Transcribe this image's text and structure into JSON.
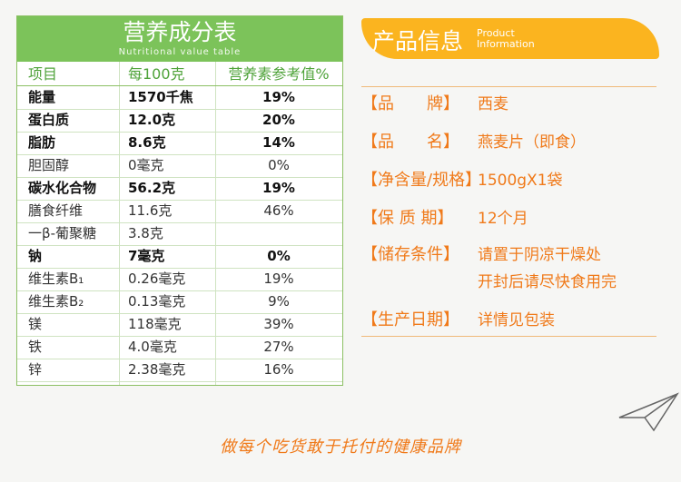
{
  "nutrition_table": {
    "title": "营养成分表",
    "subtitle": "Nutritional value table",
    "header": [
      "项目",
      "每100克",
      "营养素参考值%"
    ],
    "rows": [
      {
        "cells": [
          "能量",
          "1570千焦",
          "19%"
        ],
        "bold": true
      },
      {
        "cells": [
          "蛋白质",
          "12.0克",
          "20%"
        ],
        "bold": true
      },
      {
        "cells": [
          "脂肪",
          "8.6克",
          "14%"
        ],
        "bold": true
      },
      {
        "cells": [
          "胆固醇",
          "0毫克",
          "0%"
        ],
        "bold": false
      },
      {
        "cells": [
          "碳水化合物",
          "56.2克",
          "19%"
        ],
        "bold": true
      },
      {
        "cells": [
          "膳食纤维",
          "11.6克",
          "46%"
        ],
        "bold": false
      },
      {
        "cells": [
          "一β-葡聚糖",
          "3.8克"
        ],
        "bold": false
      },
      {
        "cells": [
          "钠",
          "7毫克",
          "0%"
        ],
        "bold": true
      },
      {
        "cells": [
          "维生素B₁",
          "0.26毫克",
          "19%"
        ],
        "bold": false
      },
      {
        "cells": [
          "维生素B₂",
          "0.13毫克",
          "9%"
        ],
        "bold": false
      },
      {
        "cells": [
          "镁",
          "118毫克",
          "39%"
        ],
        "bold": false
      },
      {
        "cells": [
          "铁",
          "4.0毫克",
          "27%"
        ],
        "bold": false
      },
      {
        "cells": [
          "锌",
          "2.38毫克",
          "16%"
        ],
        "bold": false
      }
    ]
  },
  "product_info": {
    "title": "产品信息",
    "subtitle": [
      "Product",
      "Information"
    ],
    "items": [
      {
        "label": "【品　　牌】",
        "value": [
          "西麦"
        ]
      },
      {
        "label": "【品　　名】",
        "value": [
          "燕麦片（即食）"
        ]
      },
      {
        "label": "【净含量/规格】",
        "value": [
          "1500gX1袋"
        ]
      },
      {
        "label": "【保 质 期】",
        "value": [
          "12个月"
        ]
      },
      {
        "label": "【储存条件】",
        "value": [
          "请置于阴凉干燥处",
          "开封后请尽快食用完"
        ]
      },
      {
        "label": "【生产日期】",
        "value": [
          "详情见包装"
        ]
      }
    ]
  },
  "slogan": "做每个吃货敢于托付的健康品牌"
}
